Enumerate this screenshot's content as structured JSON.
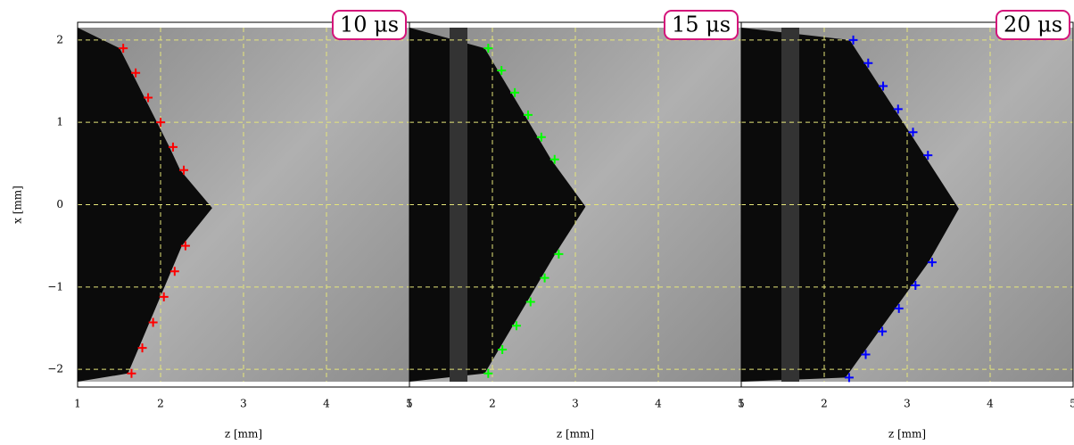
{
  "chart_data": [
    {
      "type": "scatter",
      "annotation": "10 μs",
      "xlabel": "z [mm]",
      "ylabel": "x [mm]",
      "xlim": [
        1,
        5
      ],
      "ylim": [
        -2.15,
        2.15
      ],
      "xticks": [
        1,
        2,
        3,
        4,
        5
      ],
      "yticks": [
        {
          "value": -2,
          "label": "−2"
        },
        {
          "value": -1,
          "label": "−1"
        },
        0,
        1,
        2
      ],
      "grid": true,
      "series": [
        {
          "color": "#ff0000",
          "x": [
            1.55,
            1.7,
            1.85,
            2.0,
            2.15,
            2.28
          ],
          "values": [
            1.9,
            1.6,
            1.3,
            1.0,
            0.7,
            0.42
          ]
        },
        {
          "color": "#ff0000",
          "x": [
            2.3,
            2.17,
            2.04,
            1.91,
            1.78,
            1.65
          ],
          "values": [
            -0.5,
            -0.81,
            -1.12,
            -1.43,
            -1.74,
            -2.05
          ]
        }
      ]
    },
    {
      "type": "scatter",
      "annotation": "15 μs",
      "xlabel": "z [mm]",
      "xlim": [
        1,
        5
      ],
      "ylim": [
        -2.15,
        2.15
      ],
      "xticks": [
        1,
        2,
        3,
        4,
        5
      ],
      "grid": true,
      "series": [
        {
          "color": "#00ff00",
          "x": [
            1.95,
            2.11,
            2.27,
            2.43,
            2.59,
            2.75
          ],
          "values": [
            1.9,
            1.63,
            1.36,
            1.09,
            0.82,
            0.55
          ]
        },
        {
          "color": "#00ff00",
          "x": [
            2.8,
            2.63,
            2.46,
            2.29,
            2.12,
            1.95
          ],
          "values": [
            -0.6,
            -0.89,
            -1.18,
            -1.47,
            -1.76,
            -2.05
          ]
        }
      ]
    },
    {
      "type": "scatter",
      "annotation": "20 μs",
      "xlabel": "z [mm]",
      "xlim": [
        1,
        5
      ],
      "ylim": [
        -2.15,
        2.15
      ],
      "xticks": [
        1,
        2,
        3,
        4,
        5
      ],
      "grid": true,
      "series": [
        {
          "color": "#0000ff",
          "x": [
            2.35,
            2.53,
            2.71,
            2.89,
            3.07,
            3.25
          ],
          "values": [
            2.0,
            1.72,
            1.44,
            1.16,
            0.88,
            0.6
          ]
        },
        {
          "color": "#0000ff",
          "x": [
            3.3,
            3.1,
            2.9,
            2.7,
            2.5,
            2.3
          ],
          "values": [
            -0.7,
            -0.98,
            -1.26,
            -1.54,
            -1.82,
            -2.1
          ]
        }
      ]
    }
  ]
}
